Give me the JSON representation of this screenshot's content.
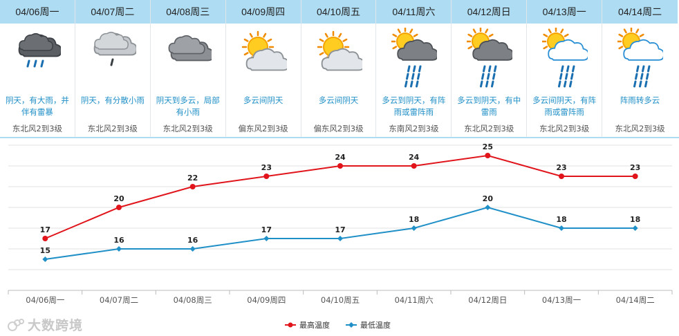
{
  "forecast": [
    {
      "date": "04/06周一",
      "desc": "阴天，有大雨，并伴有雷暴",
      "wind": "东北风2到3级",
      "icon": "thunderstorm-dark-cloud-icon"
    },
    {
      "date": "04/07周二",
      "desc": "阴天，有分散小雨",
      "wind": "东北风2到3级",
      "icon": "light-rain-cloud-icon"
    },
    {
      "date": "04/08周三",
      "desc": "阴天到多云，局部有小雨",
      "wind": "东北风2到3级",
      "icon": "overcast-cloud-icon"
    },
    {
      "date": "04/09周四",
      "desc": "多云间阴天",
      "wind": "偏东风2到3级",
      "icon": "partly-cloudy-icon"
    },
    {
      "date": "04/10周五",
      "desc": "多云间阴天",
      "wind": "偏东风2到3级",
      "icon": "partly-cloudy-icon"
    },
    {
      "date": "04/11周六",
      "desc": "多云到阴天，有阵雨或雷阵雨",
      "wind": "东南风2到3级",
      "icon": "sun-shower-thunder-icon"
    },
    {
      "date": "04/12周日",
      "desc": "多云到阴天，有中雷雨",
      "wind": "东北风2到3级",
      "icon": "sun-shower-thunder-icon"
    },
    {
      "date": "04/13周一",
      "desc": "多云间阴天，有阵雨或雷阵雨",
      "wind": "东北风2到3级",
      "icon": "sun-shower-icon"
    },
    {
      "date": "04/14周二",
      "desc": "阵雨转多云",
      "wind": "东北风2到3级",
      "icon": "sun-shower-icon"
    }
  ],
  "colors": {
    "high": "#e0141a",
    "low": "#1f8fc7",
    "header_bg": "#aedcf3",
    "desc_text": "#1f8fc7"
  },
  "chart_data": {
    "type": "line",
    "categories": [
      "04/06周一",
      "04/07周二",
      "04/08周三",
      "04/09周四",
      "04/10周五",
      "04/11周六",
      "04/12周日",
      "04/13周一",
      "04/14周二"
    ],
    "series": [
      {
        "name": "最高温度",
        "values": [
          17,
          20,
          22,
          23,
          24,
          24,
          25,
          23,
          23
        ],
        "color": "#e0141a",
        "marker": "circle"
      },
      {
        "name": "最低温度",
        "values": [
          15,
          16,
          16,
          17,
          17,
          18,
          20,
          18,
          18
        ],
        "color": "#1f8fc7",
        "marker": "diamond"
      }
    ],
    "data_labels": true,
    "grid": true,
    "legend": "bottom-center",
    "ylim": [
      12,
      26
    ]
  },
  "watermark": "大数跨境"
}
